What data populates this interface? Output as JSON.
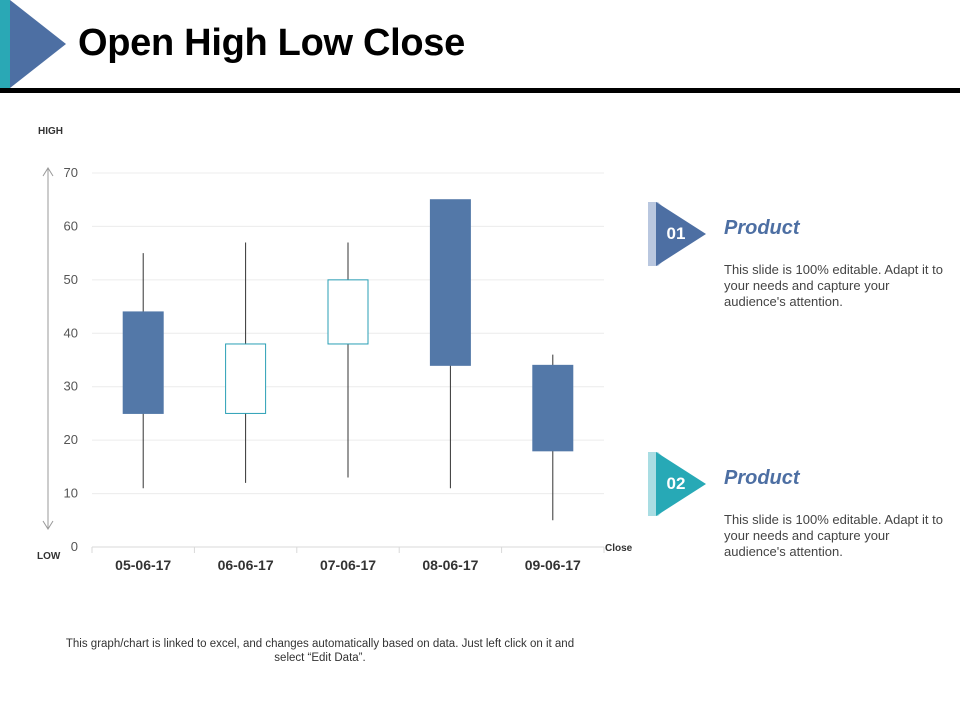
{
  "header": {
    "title": "Open High Low Close"
  },
  "chart_data": {
    "type": "candlestick",
    "categories": [
      "05-06-17",
      "06-06-17",
      "07-06-17",
      "08-06-17",
      "09-06-17"
    ],
    "candles": [
      {
        "date": "05-06-17",
        "open": 44,
        "high": 55,
        "low": 11,
        "close": 25
      },
      {
        "date": "06-06-17",
        "open": 25,
        "high": 57,
        "low": 12,
        "close": 38
      },
      {
        "date": "07-06-17",
        "open": 38,
        "high": 57,
        "low": 13,
        "close": 50
      },
      {
        "date": "08-06-17",
        "open": 65,
        "high": 65,
        "low": 11,
        "close": 34
      },
      {
        "date": "09-06-17",
        "open": 34,
        "high": 36,
        "low": 5,
        "close": 18
      }
    ],
    "ylim": [
      0,
      70
    ],
    "yticks": [
      0,
      10,
      20,
      30,
      40,
      50,
      60,
      70
    ],
    "y_top_label": "HIGH",
    "y_bottom_label": "LOW",
    "x_end_label": "Close",
    "grid": true,
    "up_color": "#ffffff",
    "up_border_color": "#2a9fb5",
    "down_color": "#5378a8"
  },
  "footnote": "This graph/chart is linked to excel, and changes automatically based on data. Just left click on it and select “Edit Data”.",
  "cards": [
    {
      "num": "01",
      "title": "Product",
      "desc": "This slide is 100% editable. Adapt it to your needs and capture your audience's attention.",
      "color": "#4d6fa3"
    },
    {
      "num": "02",
      "title": "Product",
      "desc": "This slide is 100% editable. Adapt it to your needs and capture your audience's attention.",
      "color": "#27a9b6"
    }
  ],
  "colors": {
    "accent_blue": "#4d6fa3",
    "accent_teal": "#27a9b6"
  }
}
